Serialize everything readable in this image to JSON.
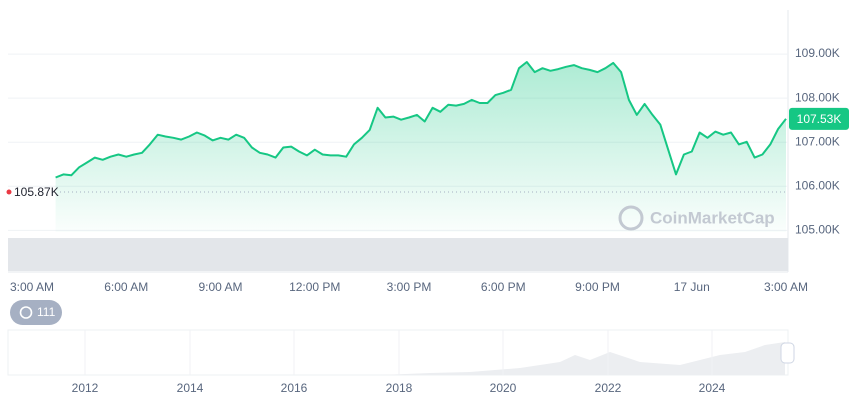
{
  "chart_data": {
    "type": "line",
    "categories": [
      "3:00 AM",
      null,
      null,
      null,
      null,
      null,
      null,
      null,
      null,
      null,
      null,
      null,
      "6:00 AM",
      null,
      null,
      null,
      null,
      null,
      null,
      null,
      null,
      null,
      null,
      null,
      "9:00 AM",
      null,
      null,
      null,
      null,
      null,
      null,
      null,
      null,
      null,
      null,
      null,
      "12:00 PM",
      null,
      null,
      null,
      null,
      null,
      null,
      null,
      null,
      null,
      null,
      null,
      "3:00 PM",
      null,
      null,
      null,
      null,
      null,
      null,
      null,
      null,
      null,
      null,
      null,
      "6:00 PM",
      null,
      null,
      null,
      null,
      null,
      null,
      null,
      null,
      null,
      null,
      null,
      "9:00 PM",
      null,
      null,
      null,
      null,
      null,
      null,
      null,
      null,
      null,
      null,
      null,
      "17 Jun",
      null,
      null,
      null,
      null,
      null,
      null,
      null,
      null,
      null,
      null,
      null,
      "3:00 AM"
    ],
    "series": [
      {
        "color": "#16c784",
        "values": [
          null,
          null,
          null,
          106200,
          106270,
          106250,
          106430,
          106540,
          106650,
          106600,
          106670,
          106720,
          106670,
          106720,
          106760,
          106950,
          107170,
          107130,
          107100,
          107060,
          107130,
          107220,
          107150,
          107040,
          107100,
          107060,
          107170,
          107100,
          106880,
          106760,
          106720,
          106650,
          106880,
          106900,
          106790,
          106700,
          106830,
          106720,
          106700,
          106700,
          106670,
          106950,
          107100,
          107280,
          107780,
          107560,
          107580,
          107510,
          107560,
          107620,
          107470,
          107780,
          107690,
          107850,
          107830,
          107870,
          107960,
          107890,
          107890,
          108070,
          108120,
          108190,
          108680,
          108820,
          108590,
          108680,
          108620,
          108660,
          108710,
          108750,
          108680,
          108640,
          108590,
          108680,
          108800,
          108590,
          107960,
          107620,
          107870,
          107620,
          107400,
          106830,
          106270,
          106720,
          106790,
          107220,
          107100,
          107240,
          107170,
          107220,
          106950,
          107010,
          106650,
          106720,
          106950,
          107300,
          107530
        ]
      }
    ],
    "ylim": [
      104100,
      110000
    ],
    "yticks": [
      {
        "value": 105000,
        "label": "105.00K"
      },
      {
        "value": 106000,
        "label": "106.00K"
      },
      {
        "value": 107000,
        "label": "107.00K"
      },
      {
        "value": 108000,
        "label": "108.00K"
      },
      {
        "value": 109000,
        "label": "109.00K"
      }
    ],
    "grid": true,
    "current_price": {
      "value": 107530,
      "label": "107.53K"
    },
    "reference": {
      "value": 105870,
      "label": "105.87K"
    },
    "watermark": "CoinMarketCap",
    "badge": "111",
    "navigator_years": [
      "2012",
      "2014",
      "2016",
      "2018",
      "2020",
      "2022",
      "2024"
    ]
  }
}
